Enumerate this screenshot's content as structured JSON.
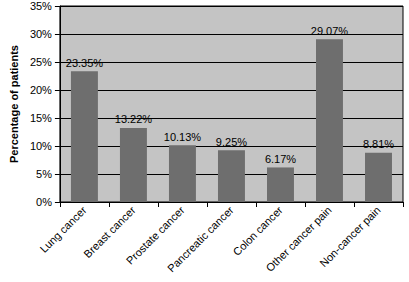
{
  "chart_data": {
    "type": "bar",
    "y_label": "Percentage of patients",
    "categories": [
      "Lung cancer",
      "Breast cancer",
      "Prostate cancer",
      "Pancreatic cancer",
      "Colon cancer",
      "Other cancer pain",
      "Non-cancer pain"
    ],
    "values": [
      23.35,
      13.22,
      10.13,
      9.25,
      6.17,
      29.07,
      8.81
    ],
    "value_labels": [
      "23.35%",
      "13.22%",
      "10.13%",
      "9.25%",
      "6.17%",
      "29.07%",
      "8.81%"
    ],
    "data_labels": true,
    "color": "#6e6e6e",
    "ylim": [
      0,
      35
    ],
    "yticks": [
      {
        "value": 0,
        "label": "0%"
      },
      {
        "value": 5,
        "label": "5%"
      },
      {
        "value": 10,
        "label": "10%"
      },
      {
        "value": 15,
        "label": "15%"
      },
      {
        "value": 20,
        "label": "20%"
      },
      {
        "value": 25,
        "label": "25%"
      },
      {
        "value": 30,
        "label": "30%"
      },
      {
        "value": 35,
        "label": "35%"
      }
    ],
    "grid": true
  }
}
